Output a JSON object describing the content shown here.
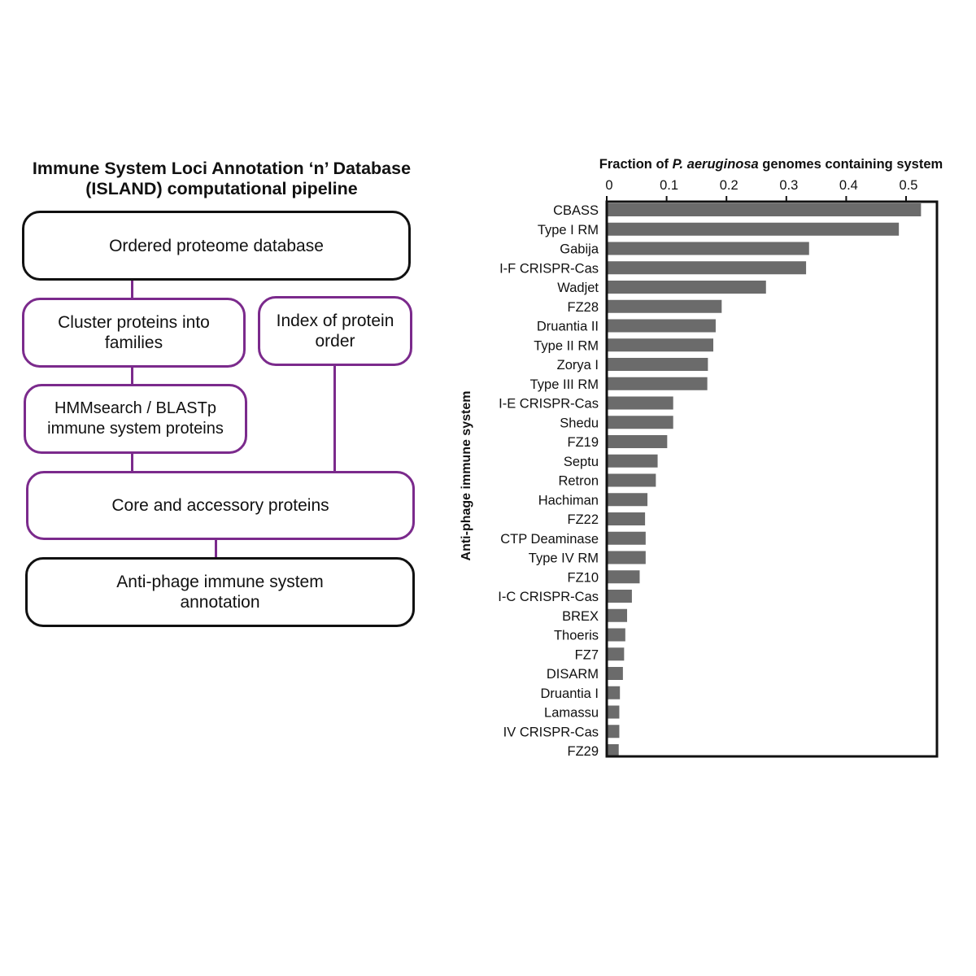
{
  "pipeline": {
    "title_line1": "Immune System Loci Annotation ‘n’ Database",
    "title_line2": "(ISLAND) computational pipeline",
    "box_ordered_proteome": "Ordered proteome database",
    "box_cluster": "Cluster proteins into families",
    "box_index": "Index of protein order",
    "box_hmmsearch": "HMMsearch / BLASTp immune system proteins",
    "box_core": "Core and accessory proteins",
    "box_annotation": "Anti-phage immune system annotation",
    "colors": {
      "black_border": "#111111",
      "purple_border": "#7b2a8c"
    }
  },
  "chart_data": {
    "type": "bar",
    "orientation": "horizontal",
    "title_pre": "Fraction of ",
    "title_italic": "P. aeruginosa",
    "title_post": " genomes containing system",
    "ylabel": "Anti-phage immune system",
    "xlim": [
      0,
      0.55
    ],
    "xticks": [
      0,
      0.1,
      0.2,
      0.3,
      0.4,
      0.5
    ],
    "xtick_labels": [
      "0",
      "0.1",
      "0.2",
      "0.3",
      "0.4",
      "0.5"
    ],
    "axis_position": "top",
    "grid": false,
    "bar_color": "#6b6b6b",
    "categories": [
      "CBASS",
      "Type I RM",
      "Gabija",
      "I-F CRISPR-Cas",
      "Wadjet",
      "FZ28",
      "Druantia II",
      "Type II RM",
      "Zorya I",
      "Type III RM",
      "I-E CRISPR-Cas",
      "Shedu",
      "FZ19",
      "Septu",
      "Retron",
      "Hachiman",
      "FZ22",
      "CTP Deaminase",
      "Type IV RM",
      "FZ10",
      "I-C CRISPR-Cas",
      "BREX",
      "Thoeris",
      "FZ7",
      "DISARM",
      "Druantia I",
      "Lamassu",
      "IV CRISPR-Cas",
      "FZ29"
    ],
    "values": [
      0.525,
      0.488,
      0.338,
      0.333,
      0.266,
      0.192,
      0.182,
      0.178,
      0.169,
      0.168,
      0.111,
      0.111,
      0.101,
      0.085,
      0.082,
      0.068,
      0.064,
      0.065,
      0.065,
      0.055,
      0.042,
      0.034,
      0.031,
      0.029,
      0.027,
      0.022,
      0.021,
      0.021,
      0.02
    ]
  }
}
